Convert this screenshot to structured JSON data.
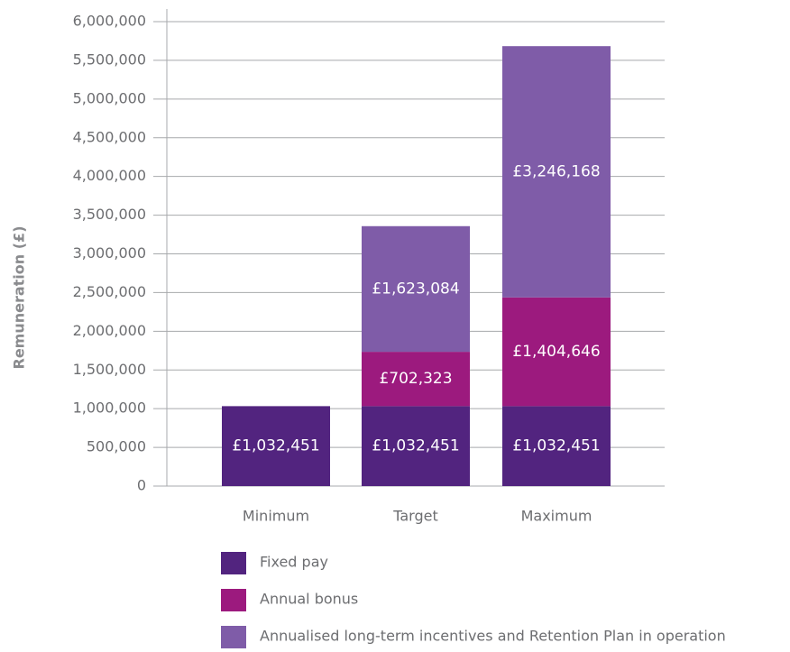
{
  "chart_data": {
    "type": "bar",
    "stacked": true,
    "y_label": "Remuneration (£)",
    "categories": [
      "Minimum",
      "Target",
      "Maximum"
    ],
    "series": [
      {
        "name": "Fixed pay",
        "color": "#52247f",
        "values": [
          1032451,
          1032451,
          1032451
        ],
        "value_labels": [
          "£1,032,451",
          "£1,032,451",
          "£1,032,451"
        ]
      },
      {
        "name": "Annual bonus",
        "color": "#9c1a7e",
        "values": [
          null,
          702323,
          1404646
        ],
        "value_labels": [
          null,
          "£702,323",
          "£1,404,646"
        ]
      },
      {
        "name": "Annualised long-term incentives and Retention Plan in operation",
        "color": "#7f5ca8",
        "values": [
          null,
          1623084,
          3246168
        ],
        "value_labels": [
          null,
          "£1,623,084",
          "£3,246,168"
        ]
      }
    ],
    "ylim": [
      0,
      6000000
    ],
    "yticks": [
      0,
      {
        "value": 500000,
        "label": "500,000"
      },
      {
        "value": 1000000,
        "label": "1,000,000"
      },
      {
        "value": 1500000,
        "label": "1,500,000"
      },
      {
        "value": 2000000,
        "label": "2,000,000"
      },
      {
        "value": 2500000,
        "label": "2,500,000"
      },
      {
        "value": 3000000,
        "label": "3,000,000"
      },
      {
        "value": 3500000,
        "label": "3,500,000"
      },
      {
        "value": 4000000,
        "label": "4,000,000"
      },
      {
        "value": 4500000,
        "label": "4,500,000"
      },
      {
        "value": 5000000,
        "label": "5,000,000"
      },
      {
        "value": 5500000,
        "label": "5,500,000"
      },
      {
        "value": 6000000,
        "label": "6,000,000"
      }
    ],
    "grid": true
  }
}
